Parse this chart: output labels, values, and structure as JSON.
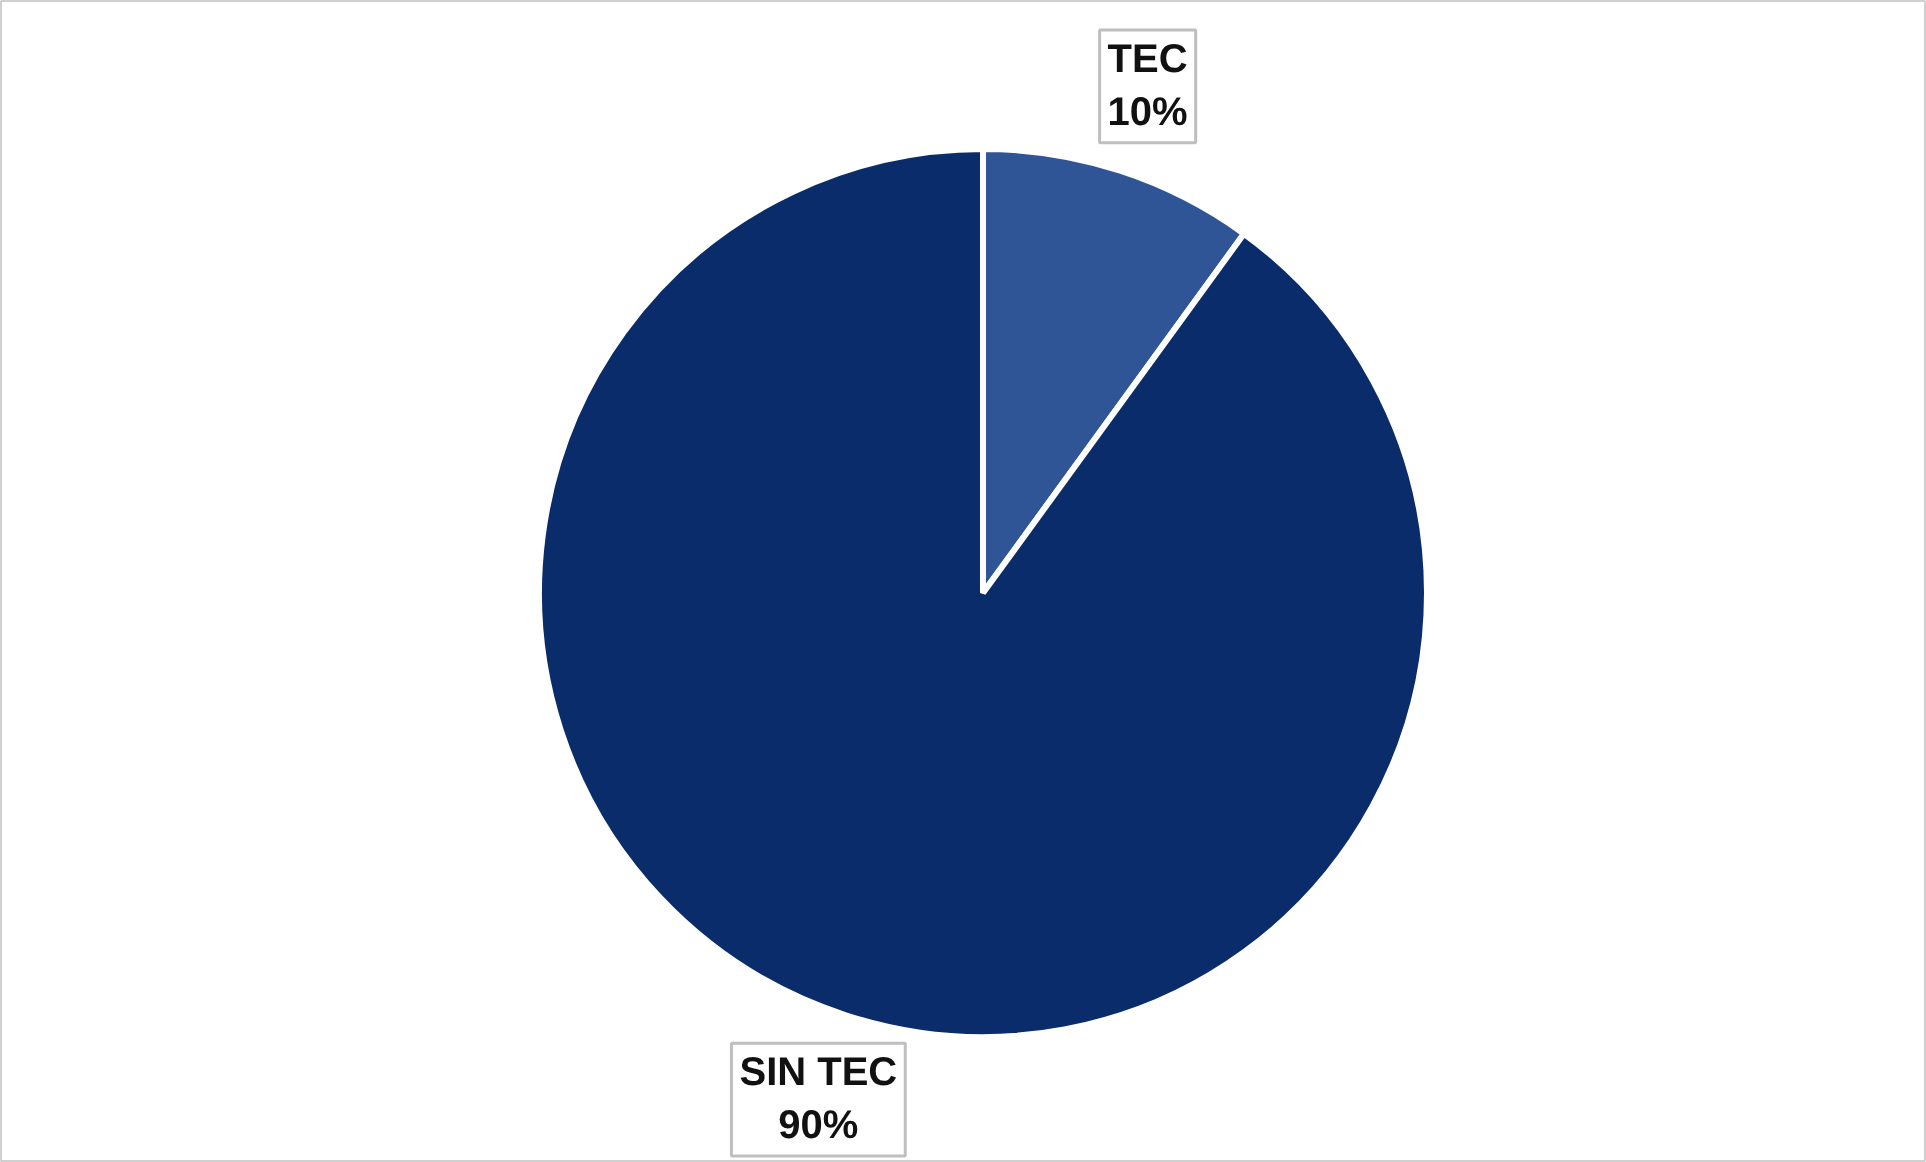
{
  "chart_data": {
    "type": "pie",
    "categories": [
      "TEC",
      "SIN TEC"
    ],
    "values": [
      10,
      90
    ],
    "colors": [
      "#2f5597",
      "#0b2c6b"
    ],
    "value_labels": [
      "10%",
      "90%"
    ]
  }
}
